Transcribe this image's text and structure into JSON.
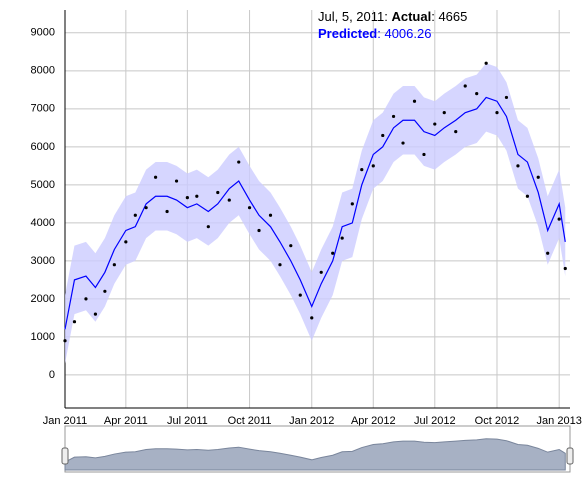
{
  "chart_data": {
    "type": "line",
    "x": [
      "2011-01-01",
      "2011-01-15",
      "2011-02-01",
      "2011-02-15",
      "2011-03-01",
      "2011-03-15",
      "2011-04-01",
      "2011-04-15",
      "2011-05-01",
      "2011-05-15",
      "2011-06-01",
      "2011-06-15",
      "2011-07-01",
      "2011-07-15",
      "2011-08-01",
      "2011-08-15",
      "2011-09-01",
      "2011-09-15",
      "2011-10-01",
      "2011-10-15",
      "2011-11-01",
      "2011-11-15",
      "2011-12-01",
      "2011-12-15",
      "2012-01-01",
      "2012-01-15",
      "2012-02-01",
      "2012-02-15",
      "2012-03-01",
      "2012-03-15",
      "2012-04-01",
      "2012-04-15",
      "2012-05-01",
      "2012-05-15",
      "2012-06-01",
      "2012-06-15",
      "2012-07-01",
      "2012-07-15",
      "2012-08-01",
      "2012-08-15",
      "2012-09-01",
      "2012-09-15",
      "2012-10-01",
      "2012-10-15",
      "2012-11-01",
      "2012-11-15",
      "2012-12-01",
      "2012-12-15",
      "2013-01-01",
      "2013-01-10"
    ],
    "series": [
      {
        "name": "Actual",
        "color": "#000000",
        "values": [
          900,
          1400,
          2000,
          1600,
          2200,
          2900,
          3500,
          4200,
          4400,
          5200,
          4300,
          5100,
          4665,
          4700,
          3900,
          4800,
          4600,
          5600,
          4400,
          3800,
          4200,
          2900,
          3400,
          2100,
          1500,
          2700,
          3200,
          3600,
          4500,
          5400,
          5500,
          6300,
          6800,
          6100,
          7200,
          5800,
          6600,
          6900,
          6400,
          7600,
          7400,
          8200,
          6900,
          7300,
          5500,
          4700,
          5200,
          3200,
          4100,
          2800
        ]
      },
      {
        "name": "Predicted",
        "color": "#0000ff",
        "band_color": "#ccccff",
        "values": [
          1200,
          2500,
          2600,
          2300,
          2700,
          3300,
          3800,
          3900,
          4500,
          4700,
          4700,
          4600,
          4400,
          4500,
          4300,
          4500,
          4900,
          5100,
          4600,
          4200,
          3900,
          3500,
          3000,
          2500,
          1800,
          2400,
          3000,
          3900,
          4000,
          5000,
          5800,
          6000,
          6500,
          6700,
          6700,
          6400,
          6300,
          6500,
          6700,
          6900,
          7000,
          7300,
          7200,
          6800,
          5800,
          5600,
          4800,
          3800,
          4500,
          3500
        ],
        "lower": [
          300,
          1600,
          1700,
          1400,
          1800,
          2400,
          2900,
          3000,
          3600,
          3800,
          3800,
          3700,
          3500,
          3600,
          3400,
          3600,
          4000,
          4200,
          3700,
          3300,
          3000,
          2600,
          2100,
          1600,
          900,
          1500,
          2100,
          3000,
          3100,
          4100,
          4900,
          5100,
          5600,
          5800,
          5800,
          5500,
          5400,
          5600,
          5800,
          6000,
          6100,
          6400,
          6300,
          5900,
          4900,
          4700,
          3900,
          2900,
          3600,
          2600
        ],
        "upper": [
          2100,
          3400,
          3500,
          3200,
          3600,
          4200,
          4700,
          4800,
          5400,
          5600,
          5600,
          5500,
          5300,
          5400,
          5200,
          5400,
          5800,
          6000,
          5500,
          5100,
          4800,
          4400,
          3900,
          3400,
          2700,
          3300,
          3900,
          4800,
          4900,
          5900,
          6700,
          6900,
          7400,
          7600,
          7600,
          7300,
          7200,
          7400,
          7600,
          7800,
          7900,
          8200,
          8100,
          7700,
          6700,
          6500,
          5700,
          4700,
          5400,
          4400
        ]
      }
    ],
    "legend": {
      "date": "Jul, 5, 2011: ",
      "values": [
        4665,
        4006.26
      ],
      "value_labels": [
        ": 4665",
        ": 4006.26"
      ]
    },
    "xlim": [
      "2011-01-01",
      "2013-01-17"
    ],
    "xticks": [
      {
        "value": "2011-01-01",
        "label": "Jan 2011"
      },
      {
        "value": "2011-04-01",
        "label": "Apr 2011"
      },
      {
        "value": "2011-07-01",
        "label": "Jul 2011"
      },
      {
        "value": "2011-10-01",
        "label": "Oct 2011"
      },
      {
        "value": "2012-01-01",
        "label": "Jan 2012"
      },
      {
        "value": "2012-04-01",
        "label": "Apr 2012"
      },
      {
        "value": "2012-07-01",
        "label": "Jul 2012"
      },
      {
        "value": "2012-10-01",
        "label": "Oct 2012"
      },
      {
        "value": "2013-01-01",
        "label": "Jan 2013"
      }
    ],
    "ylim": [
      -870,
      9600
    ],
    "yticks": [
      0,
      1000,
      2000,
      3000,
      4000,
      5000,
      6000,
      7000,
      8000,
      9000
    ],
    "grid": true
  }
}
